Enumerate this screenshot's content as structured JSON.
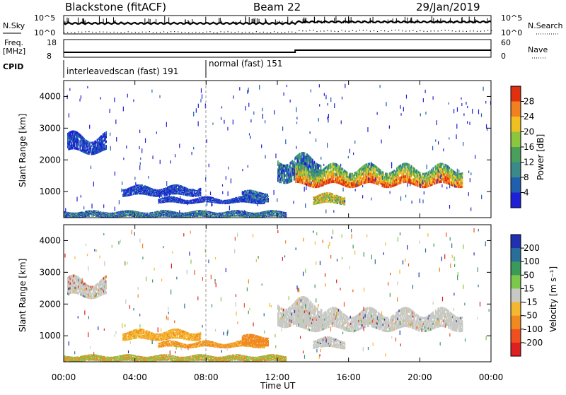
{
  "header": {
    "title": "Blackstone (fitACF)",
    "beam": "Beam 22",
    "date": "29/Jan/2019"
  },
  "strips": {
    "nsky_label": "N.Sky",
    "nsky_ticks": [
      "10^5",
      "10^0"
    ],
    "nsearch_label": "N.Search",
    "nsearch_ticks": [
      "10^5",
      "10^0"
    ],
    "freq_label": "Freq.",
    "freq_unit": "[MHz]",
    "freq_ticks": [
      "18",
      "8"
    ],
    "nave_label": "Nave",
    "nave_ticks": [
      "60",
      "0"
    ],
    "cpid_label": "CPID",
    "cpid_segments": [
      {
        "name": "interleavedscan (fast) 191",
        "start_h": 0,
        "end_h": 8
      },
      {
        "name": "normal (fast) 151",
        "start_h": 8,
        "end_h": 24
      }
    ]
  },
  "chart_data": [
    {
      "type": "heatmap",
      "name": "power",
      "ylabel": "Slant Range [km]",
      "yticks": [
        "4000",
        "3000",
        "2000",
        "1000"
      ],
      "ylim": [
        180,
        4500
      ],
      "colorbar_label": "Power [dB]",
      "colorbar_ticks": [
        "28",
        "24",
        "20",
        "16",
        "12",
        "8",
        "4"
      ],
      "colors": [
        "#1f1fd8",
        "#1f5fae",
        "#3a8a8a",
        "#4aa05a",
        "#8cc63f",
        "#f0c020",
        "#f08020",
        "#e03010"
      ]
    },
    {
      "type": "heatmap",
      "name": "velocity",
      "ylabel": "Slant Range [km]",
      "yticks": [
        "4000",
        "3000",
        "2000",
        "1000"
      ],
      "ylim": [
        180,
        4500
      ],
      "colorbar_label": "Velocity [m s⁻¹]",
      "colorbar_ticks": [
        "200",
        "100",
        "50",
        "15",
        "-15",
        "-50",
        "-100",
        "-200"
      ],
      "colors": [
        "#2030b0",
        "#2a6f9a",
        "#3a9a5a",
        "#7cc84a",
        "#c8c8c4",
        "#f4b830",
        "#f08a20",
        "#f05020",
        "#e02020"
      ]
    }
  ],
  "xaxis": {
    "label": "Time UT",
    "ticks": [
      "00:00",
      "04:00",
      "08:00",
      "12:00",
      "16:00",
      "20:00",
      "00:00"
    ],
    "range_h": [
      0,
      24
    ]
  }
}
